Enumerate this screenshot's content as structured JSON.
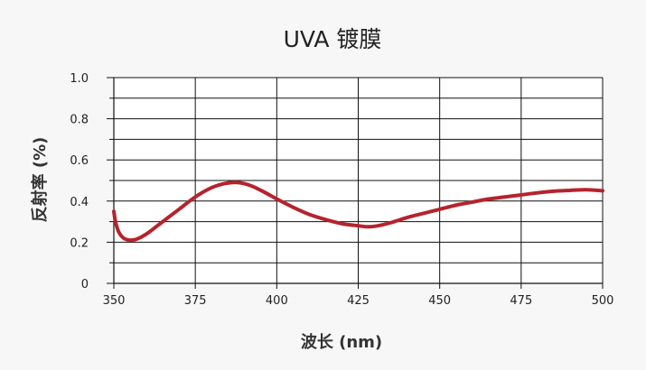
{
  "chart_data": {
    "type": "line",
    "title": "UVA 镀膜",
    "xlabel": "波长 (nm)",
    "ylabel": "反射率 (%)",
    "xlim": [
      350,
      500
    ],
    "ylim": [
      0,
      1.0
    ],
    "x_ticks": [
      350,
      375,
      400,
      425,
      450,
      475,
      500
    ],
    "x_tick_labels": [
      "350",
      "375",
      "400",
      "425",
      "450",
      "475",
      "500"
    ],
    "y_ticks": [
      0,
      0.2,
      0.4,
      0.6,
      0.8,
      1.0
    ],
    "y_tick_labels": [
      "0",
      "0.2",
      "0.4",
      "0.6",
      "0.8",
      "1.0"
    ],
    "grid": true,
    "series": [
      {
        "color": "#b5232d",
        "x": [
          350,
          350.5,
          351.5,
          353,
          355,
          357,
          360,
          365,
          370,
          375,
          380,
          384,
          388,
          392,
          396,
          400,
          405,
          410,
          415,
          420,
          425,
          428,
          431,
          435,
          440,
          445,
          450,
          455,
          460,
          465,
          470,
          475,
          480,
          485,
          490,
          495,
          500
        ],
        "y": [
          0.35,
          0.3,
          0.25,
          0.22,
          0.21,
          0.215,
          0.24,
          0.3,
          0.36,
          0.42,
          0.465,
          0.485,
          0.49,
          0.475,
          0.445,
          0.41,
          0.37,
          0.335,
          0.31,
          0.29,
          0.28,
          0.275,
          0.28,
          0.295,
          0.32,
          0.34,
          0.36,
          0.38,
          0.395,
          0.41,
          0.42,
          0.43,
          0.44,
          0.448,
          0.452,
          0.455,
          0.45
        ]
      }
    ]
  }
}
